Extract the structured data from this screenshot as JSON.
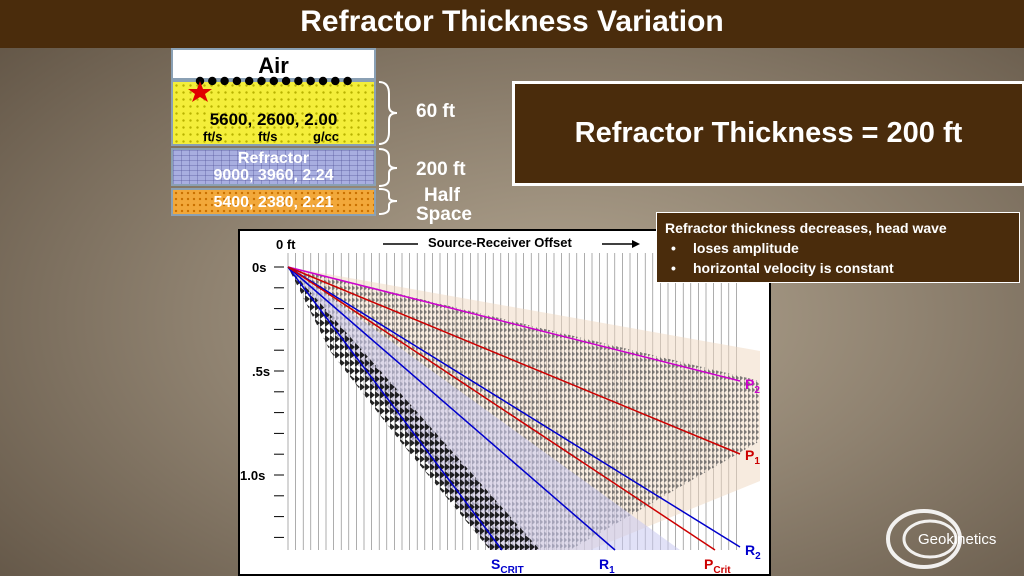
{
  "slide": {
    "title": "Refractor Thickness Variation",
    "thickness_box": "Refractor Thickness = 200 ft",
    "note": {
      "heading": "Refractor thickness decreases, head wave",
      "bullets": [
        "loses amplitude",
        "horizontal velocity is constant"
      ]
    },
    "logo_text": "Geokinetics"
  },
  "model": {
    "air_label": "Air",
    "layer1": {
      "values": "5600, 2600,  2.00",
      "units": [
        "ft/s",
        "ft/s",
        "g/cc"
      ],
      "thickness": "60 ft"
    },
    "layer2": {
      "name": "Refractor",
      "values": "9000, 3960,  2.24",
      "thickness": "200 ft"
    },
    "layer3": {
      "values": "5400, 2380,  2.21",
      "name_line1": "Half",
      "name_line2": "Space"
    }
  },
  "seismogram": {
    "offset_label": "Source-Receiver Offset",
    "offset_start": "0 ft",
    "time_labels": [
      "0s",
      ".5s",
      "1.0s"
    ],
    "events": {
      "p2": {
        "main": "P",
        "sub": "2",
        "color": "#cc00cc"
      },
      "p1": {
        "main": "P",
        "sub": "1",
        "color": "#cc0000"
      },
      "r2": {
        "main": "R",
        "sub": "2",
        "color": "#0000cc"
      },
      "s_crit": {
        "main": "S",
        "sub": "CRIT",
        "color": "#0000cc"
      },
      "r1": {
        "main": "R",
        "sub": "1",
        "color": "#0000cc"
      },
      "p_crit": {
        "main": "P",
        "sub": "Crit",
        "color": "#cc0000"
      }
    }
  },
  "colors": {
    "title_bar": "#4a2c0c",
    "layer1": "#f4ee3a",
    "layer2": "#a8aee0",
    "layer3": "#f2a83a",
    "star": "#e00000"
  }
}
